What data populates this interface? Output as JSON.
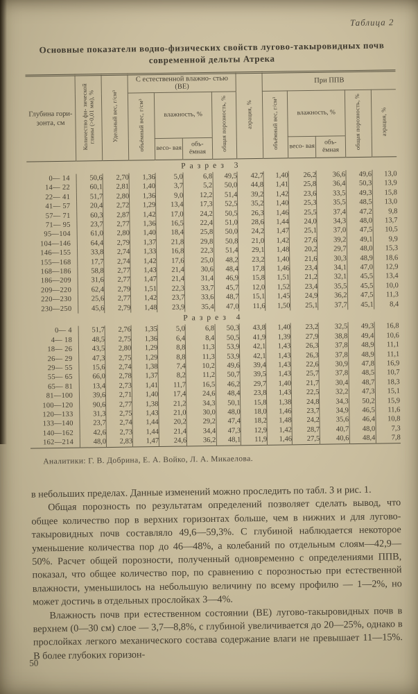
{
  "page": {
    "table_label": "Таблица 2",
    "title_line1": "Основные показатели водно-физических свойств лугово-такыровидных почв",
    "title_line2": "современной дельты Атрека",
    "page_number": "50"
  },
  "table": {
    "headers": {
      "depth": "Глубина гори- зонта, см",
      "clay": "Количество фи- зической глины (>0,01 мм), %",
      "specific_weight": "Удельный вес, г/см³",
      "group_ve": "С естественной влажно- стью (ВЕ)",
      "group_ppv": "При ППВ",
      "volume_weight": "объёмный вес, г/см³",
      "moisture": "влажность, %",
      "weight_based": "весо- вая",
      "volume_based": "объ- ёмная",
      "porosity": "общая порозность, %",
      "aeration": "аэрация, %"
    },
    "sections": [
      {
        "label": "Разрез 3",
        "rows": [
          [
            "0— 14",
            "50,6",
            "2,70",
            "1,36",
            "5,0",
            "6,8",
            "49,5",
            "42,7",
            "1,40",
            "26,2",
            "36,6",
            "49,6",
            "13,0"
          ],
          [
            "14— 22",
            "60,1",
            "2,81",
            "1,40",
            "3,7",
            "5,2",
            "50,0",
            "44,8",
            "1,41",
            "25,8",
            "36,4",
            "50,3",
            "13,9"
          ],
          [
            "22— 41",
            "51,7",
            "2,80",
            "1,36",
            "9,0",
            "12,2",
            "51,4",
            "39,2",
            "1,42",
            "23,6",
            "33,5",
            "49,3",
            "15,8"
          ],
          [
            "41— 57",
            "20,4",
            "2,72",
            "1,29",
            "13,4",
            "17,3",
            "52,5",
            "35,2",
            "1,40",
            "25,3",
            "35,5",
            "48,5",
            "13,0"
          ],
          [
            "57— 71",
            "60,3",
            "2,87",
            "1,42",
            "17,0",
            "24,2",
            "50,5",
            "26,3",
            "1,46",
            "25,5",
            "37,4",
            "47,2",
            "9,8"
          ],
          [
            "71— 95",
            "23,7",
            "2,77",
            "1,36",
            "16,5",
            "22,4",
            "51,0",
            "28,6",
            "1,44",
            "24,0",
            "34,3",
            "48,0",
            "13,7"
          ],
          [
            "95—104",
            "61,0",
            "2,80",
            "1,40",
            "18,4",
            "25,8",
            "50,0",
            "24,2",
            "1,47",
            "25,1",
            "37,0",
            "47,5",
            "10,5"
          ],
          [
            "104—146",
            "64,4",
            "2,79",
            "1,37",
            "21,8",
            "29,8",
            "50,8",
            "21,0",
            "1,42",
            "27,6",
            "39,2",
            "49,1",
            "9,9"
          ],
          [
            "146—155",
            "33,8",
            "2,74",
            "1,33",
            "16,8",
            "22,3",
            "51,4",
            "29,1",
            "1,48",
            "20,2",
            "29,7",
            "48,0",
            "15,3"
          ],
          [
            "155—168",
            "17,7",
            "2,74",
            "1,42",
            "17,6",
            "25,0",
            "48,2",
            "23,2",
            "1,40",
            "21,6",
            "30,3",
            "48,9",
            "18,6"
          ],
          [
            "168—186",
            "58,8",
            "2,77",
            "1,43",
            "21,4",
            "30,6",
            "48,4",
            "17,8",
            "1,46",
            "23,4",
            "34,1",
            "47,0",
            "12,9"
          ],
          [
            "186—209",
            "31,6",
            "2,77",
            "1,47",
            "21,4",
            "31,4",
            "46,9",
            "15,8",
            "1,51",
            "21,2",
            "32,1",
            "45,5",
            "13,4"
          ],
          [
            "209—220",
            "62,4",
            "2,79",
            "1,51",
            "22,3",
            "33,7",
            "45,7",
            "12,0",
            "1,52",
            "23,4",
            "35,5",
            "45,5",
            "10,0"
          ],
          [
            "220—230",
            "25,6",
            "2,77",
            "1,42",
            "23,7",
            "33,6",
            "48,7",
            "15,1",
            "1,45",
            "24,9",
            "36,2",
            "47,5",
            "11,3"
          ],
          [
            "230—250",
            "45,6",
            "2,79",
            "1,48",
            "23,9",
            "35,4",
            "47,0",
            "11,6",
            "1,50",
            "25,1",
            "37,7",
            "45,1",
            "8,4"
          ]
        ]
      },
      {
        "label": "Разрез 4",
        "rows": [
          [
            "0— 4",
            "51,7",
            "2,76",
            "1,35",
            "5,0",
            "6,8",
            "50,3",
            "43,8",
            "1,40",
            "23,2",
            "32,5",
            "49,3",
            "16,8"
          ],
          [
            "4— 18",
            "48,5",
            "2,75",
            "1,36",
            "6,4",
            "8,4",
            "50,5",
            "41,9",
            "1,39",
            "27,9",
            "38,8",
            "49,4",
            "10,6"
          ],
          [
            "18— 26",
            "43,5",
            "2,80",
            "1,29",
            "8,8",
            "11,3",
            "53,9",
            "42,1",
            "1,43",
            "26,3",
            "37,8",
            "48,9",
            "11,1"
          ],
          [
            "26— 29",
            "47,3",
            "2,75",
            "1,29",
            "8,8",
            "11,3",
            "53,9",
            "42,1",
            "1,43",
            "26,3",
            "37,8",
            "48,9",
            "11,1"
          ],
          [
            "29— 55",
            "15,6",
            "2,74",
            "1,38",
            "7,4",
            "10,2",
            "49,6",
            "39,4",
            "1,43",
            "22,6",
            "30,9",
            "47,8",
            "16,9"
          ],
          [
            "55— 65",
            "66,0",
            "2,78",
            "1,37",
            "8,2",
            "11,2",
            "50,7",
            "39,5",
            "1,43",
            "25,7",
            "37,8",
            "48,5",
            "10,7"
          ],
          [
            "65— 81",
            "13,4",
            "2,73",
            "1,41",
            "11,7",
            "16,5",
            "46,2",
            "29,7",
            "1,40",
            "21,7",
            "30,4",
            "48,7",
            "18,3"
          ],
          [
            "81—100",
            "39,6",
            "2,71",
            "1,40",
            "17,4",
            "24,6",
            "48,4",
            "23,8",
            "1,43",
            "22,5",
            "32,2",
            "47,3",
            "15,1"
          ],
          [
            "100—120",
            "90,6",
            "2,77",
            "1,38",
            "21,2",
            "34,3",
            "50,1",
            "15,8",
            "1,38",
            "24,8",
            "34,3",
            "50,2",
            "15,9"
          ],
          [
            "120—133",
            "31,3",
            "2,75",
            "1,43",
            "21,0",
            "30,0",
            "48,0",
            "18,0",
            "1,46",
            "23,7",
            "34,9",
            "46,5",
            "11,6"
          ],
          [
            "133—140",
            "23,7",
            "2,74",
            "1,44",
            "20,2",
            "29,2",
            "47,4",
            "18,2",
            "1,48",
            "24,2",
            "35,6",
            "46,4",
            "10,8"
          ],
          [
            "140—162",
            "42,6",
            "2,73",
            "1,44",
            "21,4",
            "34,4",
            "47,3",
            "12,9",
            "1,42",
            "28,7",
            "40,7",
            "48,0",
            "7,3"
          ],
          [
            "162—214",
            "48,0",
            "2,83",
            "1,47",
            "24,6",
            "36,2",
            "48,1",
            "11,9",
            "1,46",
            "27,5",
            "40,6",
            "48,4",
            "7,8"
          ]
        ]
      }
    ],
    "analysts": "Аналитики: Г. В. Добрина, Е. А. Войко, Л. А. Микаелова."
  },
  "body_text": {
    "para1": "в небольших пределах. Данные изменений можно проследить по табл. 3 и рис. 1.",
    "para2": "Общая порозность по результатам определений позволяет сделать вывод, что общее количество пор в верхних  горизонтах больше, чем в нижних и для лугово-такыровидных почв составляло 49,6—59,3%. С глубиной наблюдается некоторое уменьшение количества пор до 46—48%, а колебаний по отдельным слоям—42,9—50%. Расчет общей порозности, полученный одновременно с определениями ППВ, показал, что общее количество пор,  по  сравнению с порозностью  при естественной влажности, уменьшилось на небольшую величину по всему профилю — 1—2%, но может достичь в отдельных прослойках 3—4%.",
    "para3": "Влажность почв при естественном состоянии (ВЕ) лугово-такыровидных почв в верхнем (0—30 см) слое — 3,7—8,8%, с глубиной увеличивается до 20—25%, однако в прослойках легкого механического состава содержание влаги не превышает 11—15%. В более глубоких горизон-"
  }
}
